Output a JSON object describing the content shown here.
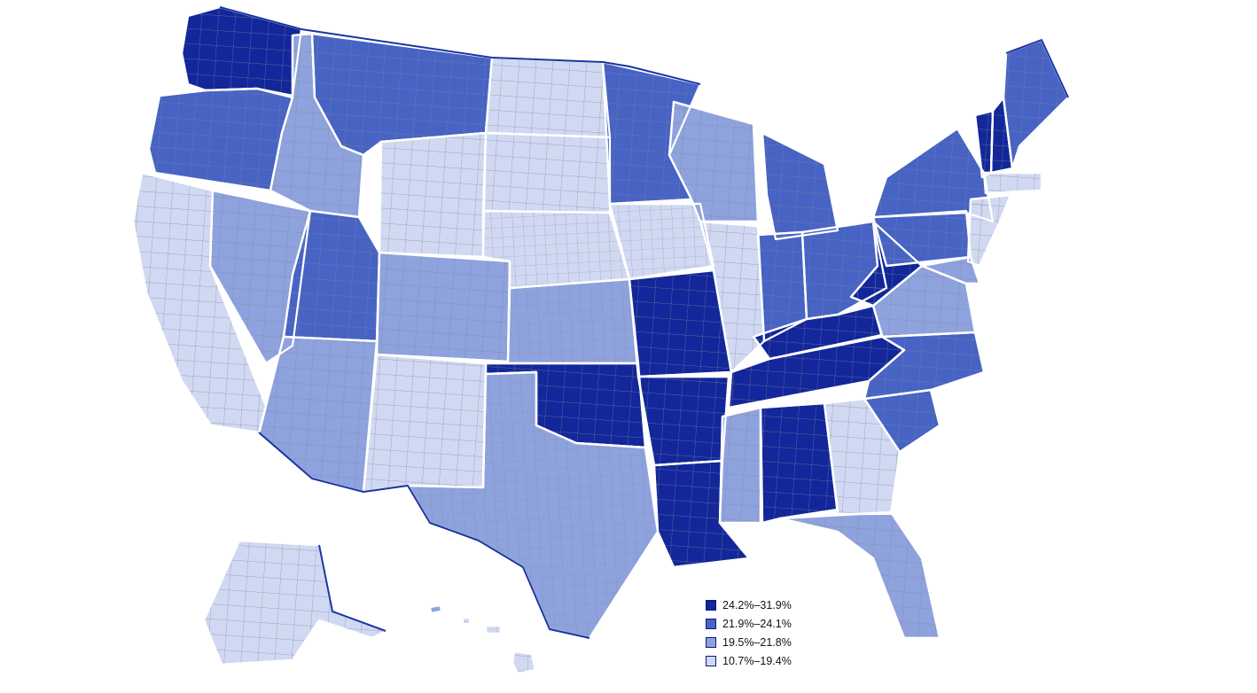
{
  "legend": {
    "items": [
      {
        "label": "24.2%–31.9%",
        "color": "#13279a"
      },
      {
        "label": "21.9%–24.1%",
        "color": "#4763c4"
      },
      {
        "label": "19.5%–21.8%",
        "color": "#8ea2dd"
      },
      {
        "label": "10.7%–19.4%",
        "color": "#d0d9f1"
      }
    ]
  },
  "palette": {
    "state_border": "#ffffff",
    "county_line": "#7e869b",
    "coast_outline": "#1a34a0"
  }
}
